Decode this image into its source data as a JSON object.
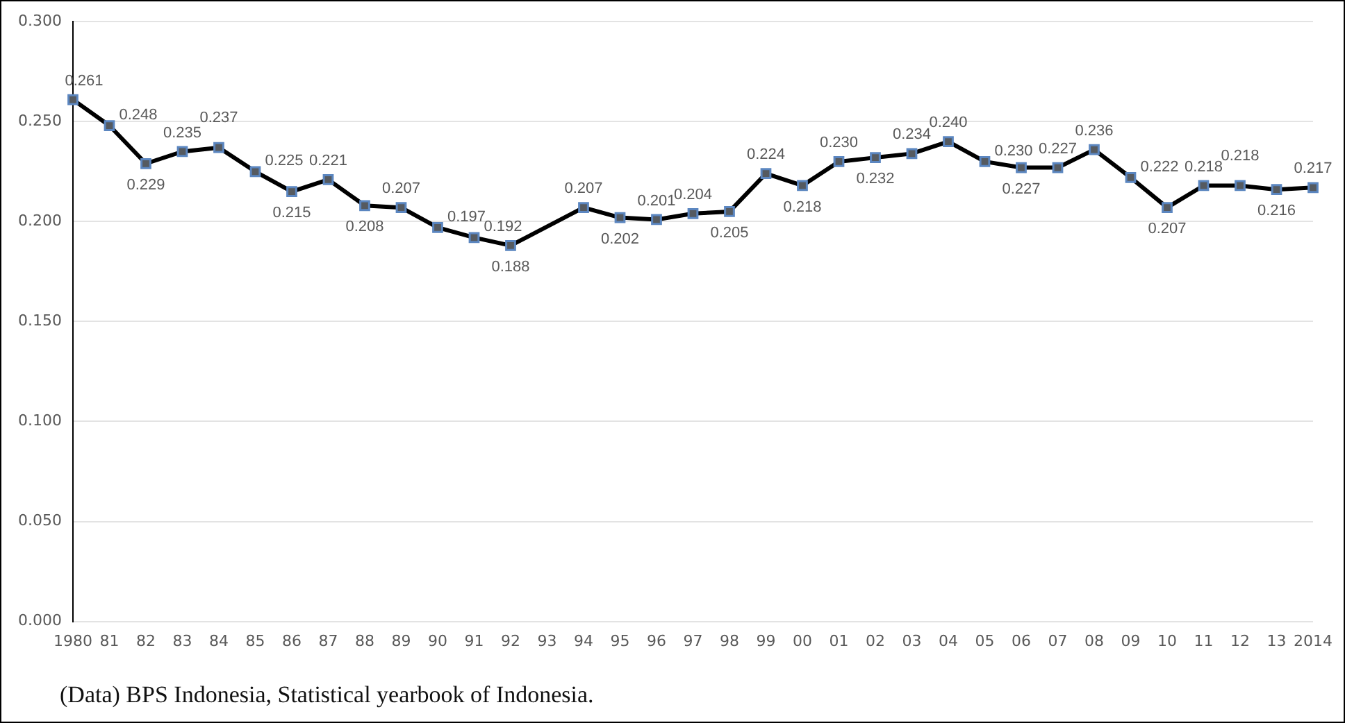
{
  "chart_data": {
    "type": "line",
    "categories": [
      "1980",
      "81",
      "82",
      "83",
      "84",
      "85",
      "86",
      "87",
      "88",
      "89",
      "90",
      "91",
      "92",
      "93",
      "94",
      "95",
      "96",
      "97",
      "98",
      "99",
      "00",
      "01",
      "02",
      "03",
      "04",
      "05",
      "06",
      "07",
      "08",
      "09",
      "10",
      "11",
      "12",
      "13",
      "2014"
    ],
    "series": [
      {
        "color": "#000000",
        "values": [
          0.261,
          0.248,
          0.229,
          0.235,
          0.237,
          0.225,
          0.215,
          0.221,
          0.208,
          0.207,
          0.197,
          0.192,
          0.188,
          null,
          0.207,
          0.202,
          0.201,
          0.204,
          0.205,
          0.224,
          0.218,
          0.23,
          0.232,
          0.234,
          0.24,
          0.23,
          0.227,
          0.227,
          0.236,
          0.222,
          0.207,
          0.218,
          0.218,
          0.216,
          0.217
        ],
        "value_labels": [
          "0.261",
          "0.248",
          "0.229",
          "0.235",
          "0.237",
          "0.225",
          "0.215",
          "0.221",
          "0.208",
          "0.207",
          "0.197",
          "0.192",
          "0.188",
          null,
          "0.207",
          "0.202",
          "0.201",
          "0.204",
          "0.205",
          "0.224",
          "0.218",
          "0.230",
          "0.232",
          "0.234",
          "0.240",
          "0.230",
          "0.227",
          "0.227",
          "0.236",
          "0.222",
          "0.207",
          "0.218",
          "0.218",
          "0.216",
          "0.217"
        ]
      }
    ],
    "ylim": [
      0,
      0.3
    ],
    "yticks": [
      {
        "value": 0,
        "label": "0.000"
      },
      {
        "value": 0.05,
        "label": "0.050"
      },
      {
        "value": 0.1,
        "label": "0.100"
      },
      {
        "value": 0.15,
        "label": "0.150"
      },
      {
        "value": 0.2,
        "label": "0.200"
      },
      {
        "value": 0.25,
        "label": "0.250"
      },
      {
        "value": 0.3,
        "label": "0.300"
      }
    ],
    "grid": "y",
    "legend": false,
    "marker": "square",
    "line_style": "solid",
    "annotations": [
      "(Data) BPS Indonesia, Statistical yearbook of Indonesia."
    ]
  }
}
